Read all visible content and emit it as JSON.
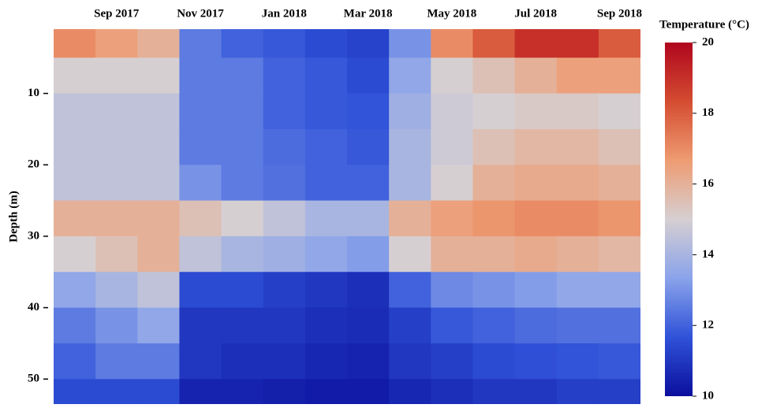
{
  "chart_data": {
    "type": "heatmap",
    "y_label": "Depth (m)",
    "colorbar_label": "Temperature (°C)",
    "x": [
      "2017-08",
      "2017-09",
      "2017-10",
      "2017-11",
      "2017-12",
      "2018-01",
      "2018-02",
      "2018-03",
      "2018-04",
      "2018-05",
      "2018-06",
      "2018-07",
      "2018-08",
      "2018-09"
    ],
    "xlim": [
      "2017-08",
      "2018-09"
    ],
    "xticks": [
      {
        "value": "2017-09",
        "label": "Sep 2017"
      },
      {
        "value": "2017-11",
        "label": "Nov 2017"
      },
      {
        "value": "2018-01",
        "label": "Jan 2018"
      },
      {
        "value": "2018-03",
        "label": "Mar 2018"
      },
      {
        "value": "2018-05",
        "label": "May 2018"
      },
      {
        "value": "2018-07",
        "label": "Jul 2018"
      },
      {
        "value": "2018-09",
        "label": "Sep 2018"
      }
    ],
    "y": [
      2.5,
      7.5,
      12.5,
      17.5,
      22.5,
      27.5,
      32.5,
      37.5,
      42.5,
      47.5,
      52.5
    ],
    "ylim": [
      1,
      53.5
    ],
    "yticks": [
      10,
      20,
      30,
      40,
      50
    ],
    "z": [
      [
        17,
        16.5,
        16,
        12.5,
        12,
        11.8,
        11.5,
        11.3,
        13,
        17,
        18,
        19,
        19,
        18
      ],
      [
        15,
        15,
        15,
        12.5,
        12.5,
        12,
        11.8,
        11.5,
        13.5,
        15,
        15.5,
        16,
        16.5,
        16.5
      ],
      [
        14.5,
        14.5,
        14.5,
        12.5,
        12.5,
        12,
        11.8,
        11.7,
        13.8,
        14.8,
        15,
        15.2,
        15.2,
        15
      ],
      [
        14.5,
        14.5,
        14.5,
        12.5,
        12.5,
        12.2,
        12,
        11.8,
        14,
        14.8,
        15.5,
        15.8,
        15.8,
        15.5
      ],
      [
        14.5,
        14.5,
        14.5,
        13,
        12.5,
        12.3,
        12,
        12,
        14,
        15,
        16,
        16.2,
        16.2,
        16
      ],
      [
        16,
        16,
        16,
        15.5,
        15,
        14.5,
        14,
        14,
        16,
        16.5,
        16.8,
        17,
        17,
        16.8
      ],
      [
        15,
        15.5,
        16,
        14.5,
        14,
        13.8,
        13.5,
        13.2,
        15,
        16,
        16,
        16.2,
        16,
        15.8
      ],
      [
        13.5,
        14,
        14.5,
        11.5,
        11.5,
        11.2,
        11,
        10.8,
        12,
        12.8,
        13,
        13.2,
        13.5,
        13.5
      ],
      [
        12.5,
        13,
        13.5,
        11,
        11,
        11,
        10.8,
        10.7,
        11.2,
        11.8,
        12,
        12.2,
        12.3,
        12.3
      ],
      [
        12,
        12.5,
        12.5,
        11,
        10.8,
        10.8,
        10.6,
        10.5,
        11,
        11.2,
        11.5,
        11.6,
        11.7,
        11.8
      ],
      [
        11.5,
        11.5,
        11.5,
        10.5,
        10.5,
        10.4,
        10.3,
        10.3,
        10.6,
        10.8,
        11,
        11,
        11.2,
        11.2
      ]
    ],
    "zlim": [
      10,
      20
    ],
    "zticks": [
      10,
      12,
      14,
      16,
      18,
      20
    ],
    "colors": [
      "#0b0f9c",
      "#2f52d8",
      "#8aa3ea",
      "#d6cfd2",
      "#ee9c72",
      "#d44c31",
      "#b0061e"
    ]
  }
}
